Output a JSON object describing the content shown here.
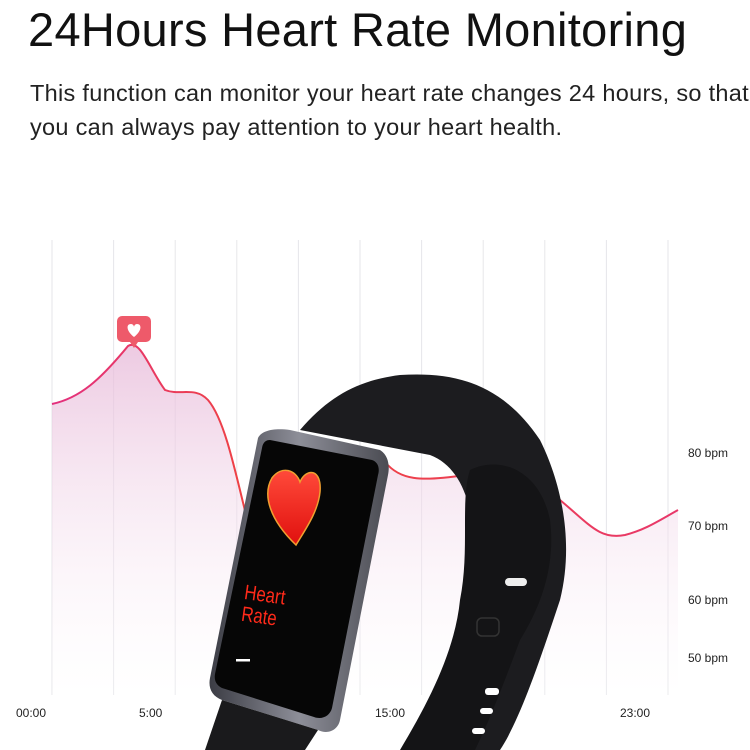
{
  "header": {
    "title": "24Hours Heart Rate Monitoring",
    "description": "This function can monitor your heart rate changes 24 hours, so that you can always pay attention to your heart health."
  },
  "graph": {
    "y_labels": [
      "80 bpm",
      "70 bpm",
      "60 bpm",
      "50 bpm"
    ],
    "x_labels": [
      "00:00",
      "5:00",
      "15:00",
      "23:00"
    ],
    "line_color": "#e8386a",
    "peak_icon": "heart-badge-icon"
  },
  "device": {
    "screen_text": "Heart\nRate",
    "screen_icon": "heart-icon",
    "screen_text_color": "#ff2a1a"
  }
}
